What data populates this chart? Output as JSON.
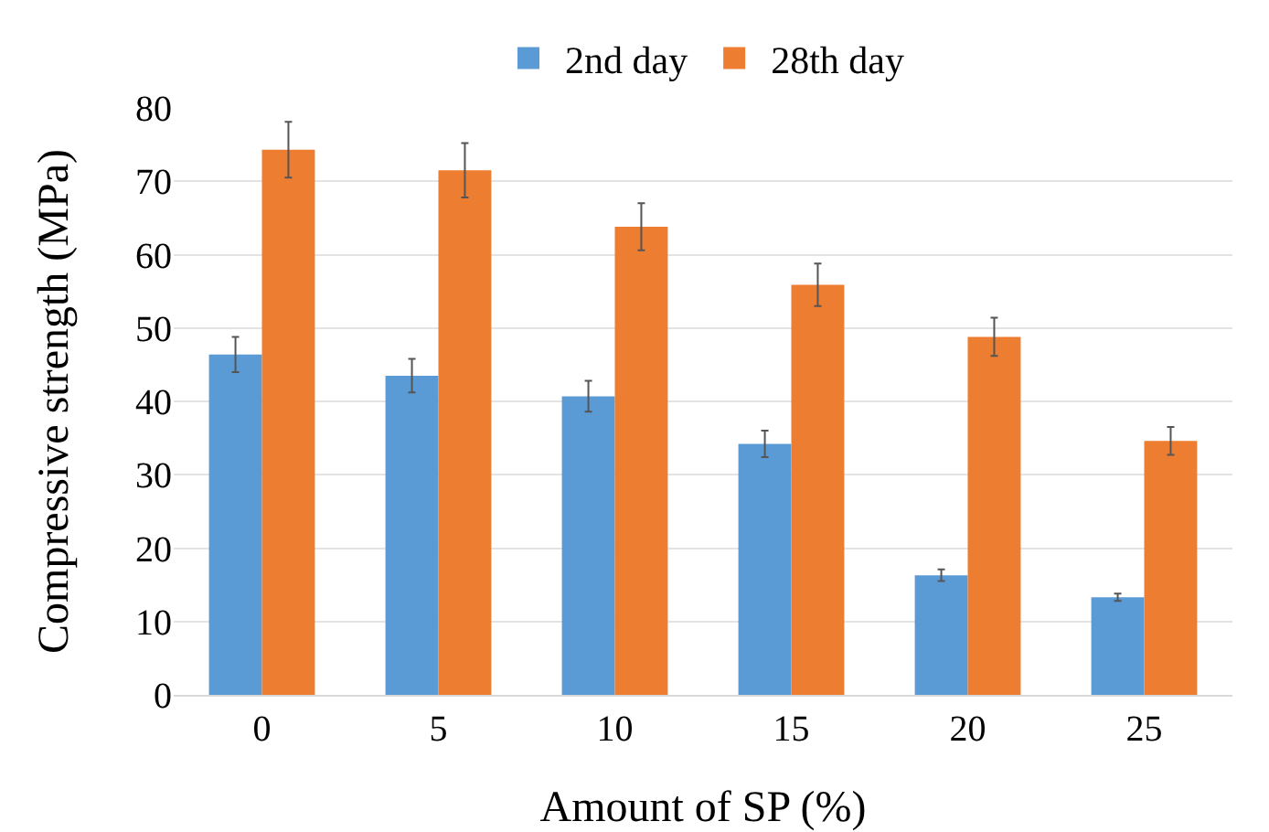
{
  "chart_data": {
    "type": "bar",
    "xlabel": "Amount of SP (%)",
    "ylabel": "Compressive strength (MPa)",
    "categories": [
      "0",
      "5",
      "10",
      "15",
      "20",
      "25"
    ],
    "series": [
      {
        "name": "2nd day",
        "color": "#5b9bd5",
        "values": [
          46.4,
          43.5,
          40.7,
          34.2,
          16.3,
          13.3
        ],
        "errors": [
          2.4,
          2.3,
          2.1,
          1.8,
          0.8,
          0.5
        ]
      },
      {
        "name": "28th day",
        "color": "#ed7d31",
        "values": [
          74.3,
          71.5,
          63.8,
          55.9,
          48.8,
          34.6
        ],
        "errors": [
          3.8,
          3.7,
          3.2,
          2.9,
          2.6,
          1.9
        ]
      }
    ],
    "ylim": [
      0,
      80
    ],
    "yticks": [
      0,
      10,
      20,
      30,
      40,
      50,
      60,
      70,
      80
    ],
    "grid": "y",
    "legend": "top"
  }
}
